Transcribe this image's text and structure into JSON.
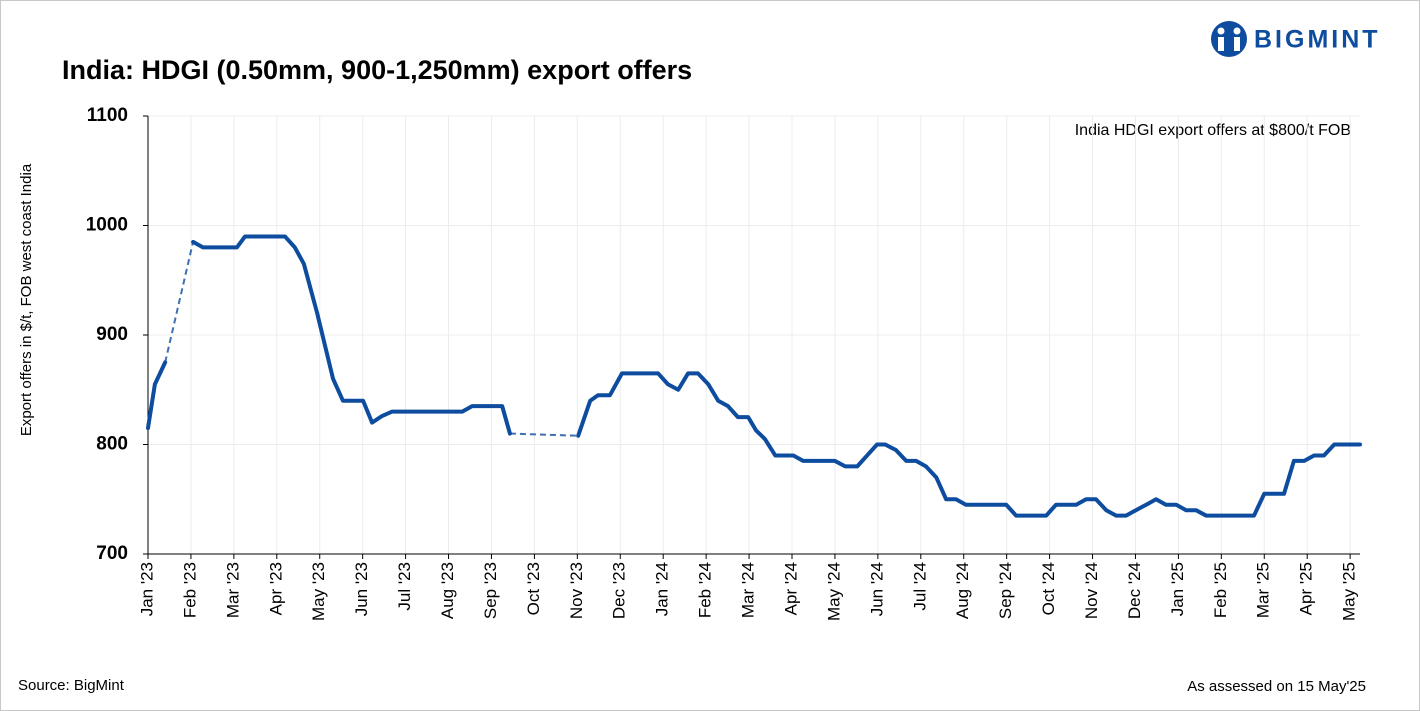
{
  "brand": "BIGMINT",
  "chart_data": {
    "type": "line",
    "title": "India: HDGI (0.50mm, 900-1,250mm) export offers",
    "ylabel": "Export offers in $/t, FOB west coast India",
    "annotation": "India HDGI export offers at $800/t FOB",
    "source": "Source: BigMint",
    "note": "As assessed on 15 May'25",
    "xlim": [
      0,
      28.23
    ],
    "ylim": [
      700,
      1100
    ],
    "yticks": [
      700,
      800,
      900,
      1000,
      1100
    ],
    "xticks": [
      {
        "value": 0,
        "label": "Jan '23"
      },
      {
        "value": 1,
        "label": "Feb '23"
      },
      {
        "value": 2,
        "label": "Mar '23"
      },
      {
        "value": 3,
        "label": "Apr '23"
      },
      {
        "value": 4,
        "label": "May '23"
      },
      {
        "value": 5,
        "label": "Jun '23"
      },
      {
        "value": 6,
        "label": "Jul '23"
      },
      {
        "value": 7,
        "label": "Aug '23"
      },
      {
        "value": 8,
        "label": "Sep '23"
      },
      {
        "value": 9,
        "label": "Oct '23"
      },
      {
        "value": 10,
        "label": "Nov '23"
      },
      {
        "value": 11,
        "label": "Dec '23"
      },
      {
        "value": 12,
        "label": "Jan '24"
      },
      {
        "value": 13,
        "label": "Feb '24"
      },
      {
        "value": 14,
        "label": "Mar '24"
      },
      {
        "value": 15,
        "label": "Apr '24"
      },
      {
        "value": 16,
        "label": "May '24"
      },
      {
        "value": 17,
        "label": "Jun '24"
      },
      {
        "value": 18,
        "label": "Jul '24"
      },
      {
        "value": 19,
        "label": "Aug '24"
      },
      {
        "value": 20,
        "label": "Sep '24"
      },
      {
        "value": 21,
        "label": "Oct '24"
      },
      {
        "value": 22,
        "label": "Nov '24"
      },
      {
        "value": 23,
        "label": "Dec '24"
      },
      {
        "value": 24,
        "label": "Jan '25"
      },
      {
        "value": 25,
        "label": "Feb '25"
      },
      {
        "value": 26,
        "label": "Mar '25"
      },
      {
        "value": 27,
        "label": "Apr '25"
      },
      {
        "value": 28,
        "label": "May '25"
      }
    ],
    "grid": true,
    "gap_style": "dashed",
    "series": [
      {
        "color": "#0d4c9e",
        "x": [
          0,
          0.16,
          0.4,
          null,
          1.05,
          1.28,
          2.07,
          2.26,
          3.19,
          3.42,
          3.63,
          3.94,
          4.31,
          4.54,
          5.01,
          5.22,
          5.45,
          5.68,
          7.32,
          7.55,
          8.25,
          8.43,
          null,
          10.02,
          10.3,
          10.48,
          10.76,
          11.04,
          11.88,
          12.11,
          12.35,
          12.58,
          12.81,
          13.05,
          13.28,
          13.51,
          13.74,
          13.98,
          14.16,
          14.37,
          14.61,
          15.03,
          15.26,
          16.0,
          16.24,
          16.52,
          16.75,
          16.98,
          17.17,
          17.42,
          17.66,
          17.89,
          18.12,
          18.36,
          18.59,
          18.82,
          19.05,
          19.99,
          20.22,
          20.92,
          21.15,
          21.62,
          21.85,
          22.08,
          22.32,
          22.55,
          22.78,
          23.01,
          23.25,
          23.48,
          23.71,
          23.95,
          24.18,
          24.41,
          24.65,
          25.76,
          26.0,
          26.46,
          26.69,
          26.93,
          27.16,
          27.39,
          27.63,
          28.23
        ],
        "values": [
          815,
          855,
          875,
          null,
          985,
          980,
          980,
          990,
          990,
          980,
          965,
          920,
          860,
          840,
          840,
          820,
          826,
          830,
          830,
          835,
          835,
          810,
          null,
          808,
          840,
          845,
          845,
          865,
          865,
          855,
          850,
          865,
          865,
          855,
          840,
          835,
          825,
          825,
          813,
          805,
          790,
          790,
          785,
          785,
          780,
          780,
          790,
          800,
          800,
          795,
          785,
          785,
          780,
          770,
          750,
          750,
          745,
          745,
          735,
          735,
          745,
          745,
          750,
          750,
          740,
          735,
          735,
          740,
          745,
          750,
          745,
          745,
          740,
          740,
          735,
          735,
          755,
          755,
          785,
          785,
          790,
          790,
          800,
          800
        ]
      }
    ]
  }
}
